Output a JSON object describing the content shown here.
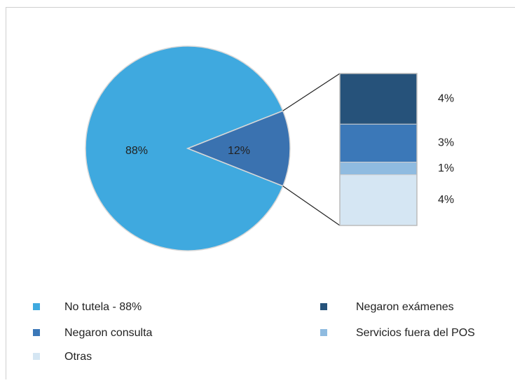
{
  "chart_data": {
    "type": "pie-of-bar",
    "pie": {
      "categories": [
        "No tutela - 88%",
        null
      ],
      "values": [
        88,
        12
      ],
      "value_labels": [
        "88%",
        "12%"
      ],
      "colors": [
        "#3fa9df",
        "#3a72b0"
      ]
    },
    "bar": {
      "categories": [
        "Negaron exámenes",
        "Negaron consulta",
        "Servicios fuera del POS",
        "Otras"
      ],
      "values": [
        4,
        3,
        1,
        4
      ],
      "value_labels": [
        "4%",
        "3%",
        "1%",
        "4%"
      ],
      "colors": [
        "#26527a",
        "#3b78b8",
        "#8fbbe0",
        "#d5e6f3"
      ]
    },
    "legend": true
  }
}
